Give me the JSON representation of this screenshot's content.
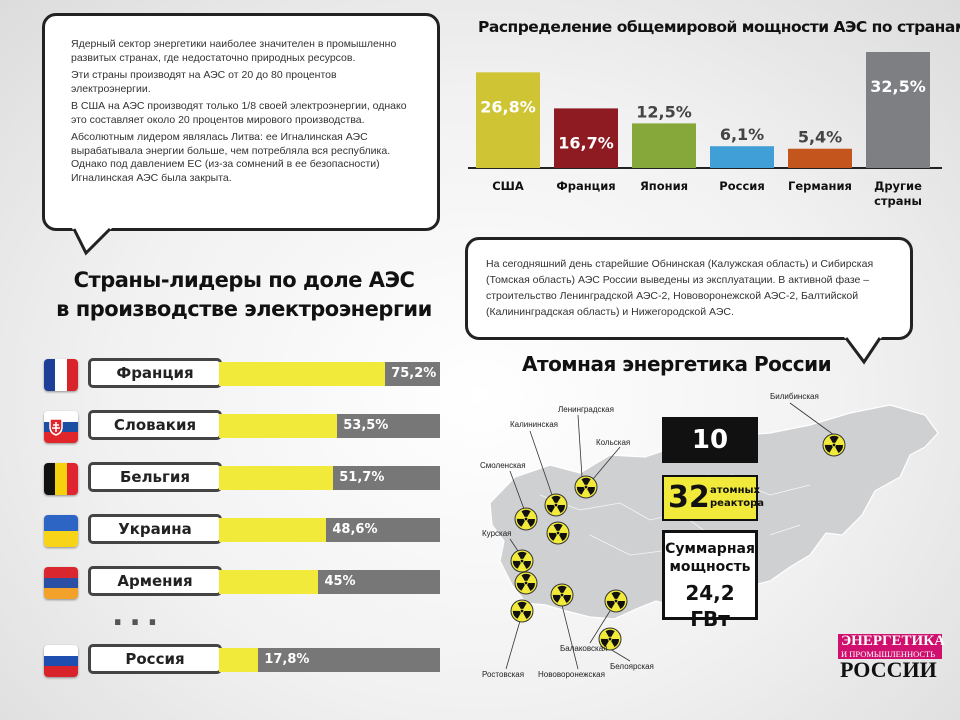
{
  "bubble_top": {
    "paragraphs": [
      "Ядерный сектор энергетики наиболее значителен в промышленно развитых странах, где недостаточно природных ресурсов.",
      "Эти страны производят на АЭС от 20 до 80 процентов электроэнергии.",
      "В США на АЭС производят только 1/8 своей электроэнергии, однако это составляет около 20 процентов мирового производства.",
      "Абсолютным лидером являлась Литва: ее Игналинская АЭС вырабатывала энергии больше, чем потребляла вся республика. Однако под давлением ЕС (из-за сомнений в ее безопасности) Игналинская АЭС была закрыта."
    ]
  },
  "bubble_mid": {
    "text": "На сегодняшний день старейшие Обнинская (Калужская область) и Сибирская (Томская область) АЭС России выведены из эксплуатации. В активной фазе – строительство Ленинградской АЭС-2, Нововоронежской АЭС-2, Балтийской (Калининградская область) и Нижегородской АЭС."
  },
  "chart_data": [
    {
      "type": "bar",
      "title": "Распределение общемировой мощности АЭС по странам",
      "categories": [
        "США",
        "Франция",
        "Япония",
        "Россия",
        "Германия",
        "Другие страны"
      ],
      "values": [
        26.8,
        16.7,
        12.5,
        6.1,
        5.4,
        32.5
      ],
      "value_labels": [
        "26,8%",
        "16,7%",
        "12,5%",
        "6,1%",
        "5,4%",
        "32,5%"
      ],
      "colors": [
        "#cfc433",
        "#8e1b22",
        "#86a83a",
        "#3f9fd6",
        "#c4561d",
        "#7d7f82"
      ],
      "ylim": [
        0,
        32.5
      ],
      "grid": false
    },
    {
      "type": "bar",
      "orientation": "horizontal",
      "title_lines": [
        "Страны-лидеры по доле АЭС",
        "в производстве электроэнергии"
      ],
      "categories": [
        "Франция",
        "Словакия",
        "Бельгия",
        "Украина",
        "Армения",
        "Россия"
      ],
      "values": [
        75.2,
        53.5,
        51.7,
        48.6,
        45,
        17.8
      ],
      "value_labels": [
        "75,2%",
        "53,5%",
        "51,7%",
        "48,6%",
        "45%",
        "17,8%"
      ],
      "xlim": [
        0,
        100
      ],
      "ellipsis": "...",
      "grid": false
    }
  ],
  "russia": {
    "title": "Атомная энергетика России",
    "plants_count": "10 АЭС",
    "reactors_number": "32",
    "reactors_label": [
      "атомных",
      "реактора"
    ],
    "power_label": [
      "Суммарная",
      "мощность"
    ],
    "power_value": "24,2 ГВт",
    "plants": [
      "Билибинская",
      "Ленинградская",
      "Калининская",
      "Кольская",
      "Смоленская",
      "Курская",
      "Ростовская",
      "Нововоронежская",
      "Балаковская",
      "Белоярская"
    ]
  },
  "logo": {
    "line1": "ЭНЕРГЕТИКА",
    "line2": "И ПРОМЫШЛЕННОСТЬ",
    "line3": "РОССИИ"
  },
  "colors": {
    "accent_yellow": "#f2ea3a",
    "bar_gray": "#777777",
    "logo_magenta": "#d0106e"
  },
  "icons": [
    "radiation-icon",
    "flag-icon"
  ]
}
